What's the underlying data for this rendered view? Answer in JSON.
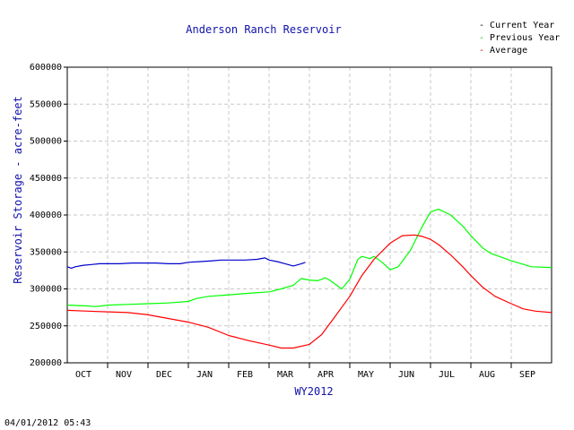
{
  "chart_data": {
    "type": "line",
    "title": "Anderson Ranch Reservoir",
    "xlabel": "WY2012",
    "ylabel": "Reservoir Storage - acre-feet",
    "categories": [
      "OCT",
      "NOV",
      "DEC",
      "JAN",
      "FEB",
      "MAR",
      "APR",
      "MAY",
      "JUN",
      "JUL",
      "AUG",
      "SEP"
    ],
    "yticks": [
      200000,
      250000,
      300000,
      350000,
      400000,
      450000,
      500000,
      550000,
      600000
    ],
    "ylim": [
      200000,
      600000
    ],
    "xlim": [
      0,
      12
    ],
    "grid": true,
    "legend_placement": "top-right",
    "series": [
      {
        "name": "Current Year",
        "color": "#0000cc",
        "x": [
          0,
          0.1,
          0.2,
          0.4,
          0.6,
          0.8,
          1.0,
          1.3,
          1.6,
          1.9,
          2.2,
          2.5,
          2.8,
          3.0,
          3.3,
          3.6,
          3.8,
          4.1,
          4.4,
          4.7,
          4.9,
          5.0,
          5.2,
          5.4,
          5.6,
          5.8,
          5.9
        ],
        "y": [
          330000,
          328000,
          330000,
          332000,
          333000,
          334000,
          334000,
          334000,
          335000,
          335000,
          335000,
          334000,
          334000,
          336000,
          337000,
          338000,
          339000,
          339000,
          339000,
          340000,
          342000,
          339000,
          337000,
          334000,
          331000,
          334000,
          336000
        ]
      },
      {
        "name": "Previous Year",
        "color": "#00ff00",
        "x": [
          0,
          0.5,
          0.7,
          1.0,
          1.5,
          2.0,
          2.5,
          3.0,
          3.2,
          3.5,
          4.0,
          4.5,
          5.0,
          5.3,
          5.6,
          5.8,
          6.0,
          6.2,
          6.4,
          6.5,
          6.6,
          6.8,
          7.0,
          7.2,
          7.3,
          7.5,
          7.6,
          7.8,
          8.0,
          8.2,
          8.5,
          8.8,
          9.0,
          9.2,
          9.5,
          9.8,
          10.0,
          10.3,
          10.5,
          11.0,
          11.5,
          12.0
        ],
        "y": [
          278000,
          277000,
          276000,
          278000,
          279000,
          280000,
          281000,
          283000,
          287000,
          290000,
          292000,
          294000,
          296000,
          300000,
          305000,
          314000,
          312000,
          311000,
          315000,
          312000,
          308000,
          300000,
          313000,
          340000,
          344000,
          341000,
          344000,
          336000,
          326000,
          330000,
          352000,
          385000,
          404000,
          408000,
          400000,
          385000,
          372000,
          355000,
          348000,
          338000,
          330000,
          329000
        ]
      },
      {
        "name": "Average",
        "color": "#ff0000",
        "x": [
          0,
          0.5,
          1.0,
          1.5,
          2.0,
          2.5,
          3.0,
          3.5,
          4.0,
          4.5,
          5.0,
          5.3,
          5.6,
          6.0,
          6.3,
          6.6,
          7.0,
          7.3,
          7.6,
          8.0,
          8.3,
          8.6,
          8.8,
          9.0,
          9.2,
          9.5,
          9.8,
          10.0,
          10.3,
          10.6,
          11.0,
          11.3,
          11.6,
          12.0
        ],
        "y": [
          271000,
          270000,
          269000,
          268000,
          265000,
          260000,
          255000,
          248000,
          237000,
          230000,
          224000,
          220000,
          220000,
          225000,
          238000,
          260000,
          290000,
          318000,
          340000,
          362000,
          372000,
          373000,
          371000,
          367000,
          360000,
          346000,
          330000,
          318000,
          302000,
          290000,
          280000,
          273000,
          270000,
          268000
        ]
      }
    ]
  },
  "legend": [
    {
      "label": "Current Year",
      "color": "#000000"
    },
    {
      "label": "Previous Year",
      "color": "#00cc00"
    },
    {
      "label": "Average",
      "color": "#cc0000"
    }
  ],
  "timestamp": "04/01/2012 05:43"
}
